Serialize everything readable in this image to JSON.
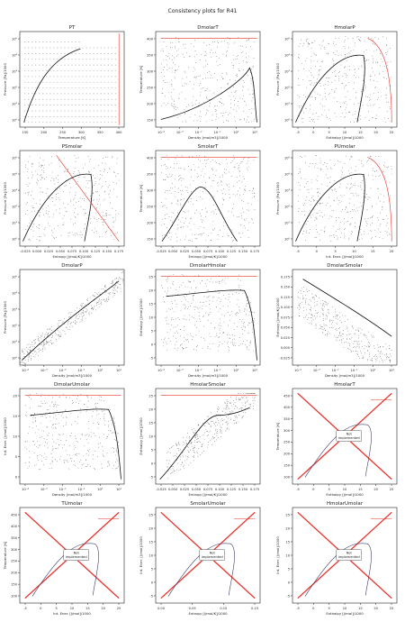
{
  "title": "Consistency plots for R41",
  "colors": {
    "axis": "#222222",
    "dots": "#333333",
    "curve": "#111111",
    "bound": "#e8302a",
    "text": "#222222",
    "box_edge": "#555555"
  },
  "not_implemented_label": [
    "Not",
    "implemented"
  ],
  "chart_data": [
    {
      "type": "scatter",
      "title": "PT",
      "xlabel": "Temperature [K]",
      "ylabel": "Pressure [Pa]/1000",
      "xticks": [
        "150",
        "200",
        "250",
        "300",
        "350",
        "400"
      ],
      "yticks": [
        "10⁰",
        "10¹",
        "10²",
        "10³",
        "10⁴",
        "10⁵"
      ],
      "curve": "sat",
      "bound": "right"
    },
    {
      "type": "scatter",
      "title": "DmolarT",
      "xlabel": "Density [mol/m3]/1000",
      "ylabel": "Temperature [K]",
      "xticks": [
        "10⁻⁴",
        "10⁻³",
        "10⁻²",
        "10⁻¹",
        "10⁰",
        "10¹"
      ],
      "yticks": [
        "150",
        "200",
        "250",
        "300",
        "350",
        "400"
      ],
      "curve": "dome-right",
      "bound": "top"
    },
    {
      "type": "scatter",
      "title": "HmolarP",
      "xlabel": "Enthalpy [J/mol]/1000",
      "ylabel": "Pressure [Pa]/1000",
      "xticks": [
        "-5",
        "0",
        "5",
        "10",
        "15",
        "20",
        "25"
      ],
      "yticks": [
        "10⁰",
        "10¹",
        "10²",
        "10³",
        "10⁴",
        "10⁵"
      ],
      "curve": "dome",
      "bound": "right-curve"
    },
    {
      "type": "scatter",
      "title": "PSmolar",
      "xlabel": "Entropy [J/mol/K]/1000",
      "ylabel": "Pressure [Pa]/1000",
      "xticks": [
        "-0.025",
        "0.000",
        "0.025",
        "0.050",
        "0.075",
        "0.100",
        "0.125",
        "0.150",
        "0.175"
      ],
      "yticks": [
        "10⁰",
        "10¹",
        "10²",
        "10³",
        "10⁴",
        "10⁵"
      ],
      "curve": "dome",
      "bound": "diag"
    },
    {
      "type": "scatter",
      "title": "SmolarT",
      "xlabel": "Entropy [J/mol/K]/1000",
      "ylabel": "Temperature [K]",
      "xticks": [
        "-0.025",
        "0.000",
        "0.025",
        "0.050",
        "0.075",
        "0.100",
        "0.125",
        "0.150",
        "0.175"
      ],
      "yticks": [
        "150",
        "200",
        "250",
        "300",
        "350",
        "400"
      ],
      "curve": "dome-t",
      "bound": "top"
    },
    {
      "type": "scatter",
      "title": "PUmolar",
      "xlabel": "Int. Ener. [J/mol]/1000",
      "ylabel": "Pressure [Pa]/1000",
      "xticks": [
        "-5",
        "0",
        "5",
        "10",
        "15",
        "20"
      ],
      "yticks": [
        "10⁰",
        "10¹",
        "10²",
        "10³",
        "10⁴",
        "10⁵"
      ],
      "curve": "dome",
      "bound": "right-curve"
    },
    {
      "type": "scatter",
      "title": "DmolarP",
      "xlabel": "Density [mol/m3]/1000",
      "ylabel": "Pressure [Pa]/1000",
      "xticks": [
        "10⁻⁴",
        "10⁻³",
        "10⁻²",
        "10⁻¹",
        "10⁰",
        "10¹"
      ],
      "yticks": [
        "10⁰",
        "10¹",
        "10²",
        "10³",
        "10⁴",
        "10⁵"
      ],
      "curve": "sat-dp",
      "bound": "none"
    },
    {
      "type": "scatter",
      "title": "DmolarHmolar",
      "xlabel": "Density [mol/m3]/1000",
      "ylabel": "Enthalpy [J/mol]/1000",
      "xticks": [
        "10⁻⁴",
        "10⁻³",
        "10⁻²",
        "10⁻¹",
        "10⁰",
        "10¹"
      ],
      "yticks": [
        "-5",
        "0",
        "5",
        "10",
        "15",
        "20",
        "25"
      ],
      "curve": "fan",
      "bound": "top"
    },
    {
      "type": "scatter",
      "title": "DmolarSmolar",
      "xlabel": "Density [mol/m3]/1000",
      "ylabel": "Entropy [J/mol/K]/1000",
      "xticks": [
        "10⁻⁴",
        "10⁻³",
        "10⁻²",
        "10⁻¹",
        "10⁰",
        "10¹"
      ],
      "yticks": [
        "-0.025",
        "0.000",
        "0.025",
        "0.050",
        "0.075",
        "0.100",
        "0.125",
        "0.150",
        "0.175"
      ],
      "curve": "fan-s",
      "bound": "none"
    },
    {
      "type": "scatter",
      "title": "DmolarUmolar",
      "xlabel": "Density [mol/m3]/1000",
      "ylabel": "Int. Ener. [J/mol]/1000",
      "xticks": [
        "10⁻⁴",
        "10⁻³",
        "10⁻²",
        "10⁻¹",
        "10⁰",
        "10¹"
      ],
      "yticks": [
        "0",
        "5",
        "10",
        "15",
        "20"
      ],
      "curve": "fan",
      "bound": "top"
    },
    {
      "type": "scatter",
      "title": "HmolarSmolar",
      "xlabel": "Entropy [J/mol/K]/1000",
      "ylabel": "Enthalpy [J/mol]/1000",
      "xticks": [
        "-0.025",
        "0.000",
        "0.025",
        "0.050",
        "0.075",
        "0.100",
        "0.125",
        "0.150",
        "0.175"
      ],
      "yticks": [
        "-5",
        "0",
        "5",
        "10",
        "15",
        "20",
        "25"
      ],
      "curve": "hs",
      "bound": "top"
    },
    {
      "type": "not_implemented",
      "title": "HmolarT",
      "xlabel": "Enthalpy [J/mol]/1000",
      "ylabel": "Temperature [K]",
      "xticks": [
        "-5",
        "0",
        "5",
        "10",
        "15",
        "20",
        "25"
      ],
      "yticks": [
        "100",
        "150",
        "200",
        "250",
        "300",
        "350",
        "400",
        "450"
      ]
    },
    {
      "type": "not_implemented",
      "title": "TUmolar",
      "xlabel": "Int. Ener. [J/mol]/1000",
      "ylabel": "Temperature [K]",
      "xticks": [
        "-5",
        "0",
        "5",
        "10",
        "15",
        "20",
        "25"
      ],
      "yticks": [
        "100",
        "150",
        "200",
        "250",
        "300",
        "350",
        "400",
        "450"
      ]
    },
    {
      "type": "not_implemented",
      "title": "SmolarUmolar",
      "xlabel": "Entropy [J/mol/K]/1000",
      "ylabel": "Int. Ener. [J/mol]/1000",
      "xticks": [
        "0.00",
        "0.05",
        "0.10",
        "0.15"
      ],
      "yticks": [
        "-5",
        "0",
        "5",
        "10",
        "15",
        "20",
        "25"
      ]
    },
    {
      "type": "not_implemented",
      "title": "HmolarUmolar",
      "xlabel": "Enthalpy [J/mol]/1000",
      "ylabel": "Int. Ener. [J/mol]/1000",
      "xticks": [
        "-5",
        "0",
        "5",
        "10",
        "15",
        "20",
        "25"
      ],
      "yticks": [
        "-5",
        "0",
        "5",
        "10",
        "15",
        "20",
        "25"
      ]
    }
  ]
}
